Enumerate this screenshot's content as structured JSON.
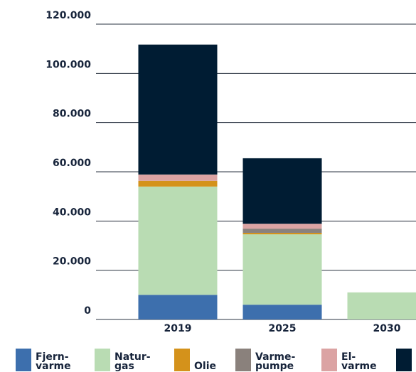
{
  "chart_data": {
    "type": "stacked-bar",
    "categories": [
      "2019",
      "2025",
      "2030"
    ],
    "series": [
      {
        "name": "Fjern-varme",
        "color": "#3d6fad",
        "values": [
          10000,
          6000,
          0
        ]
      },
      {
        "name": "Natur-gas",
        "color": "#b9dcb3",
        "values": [
          44000,
          28600,
          11000
        ]
      },
      {
        "name": "Olie",
        "color": "#d4921b",
        "values": [
          2300,
          600,
          0
        ]
      },
      {
        "name": "Varme-pumpe",
        "color": "#8a817c",
        "values": [
          0,
          1700,
          0
        ]
      },
      {
        "name": "El-varme",
        "color": "#dba3a3",
        "values": [
          2600,
          2000,
          0
        ]
      },
      {
        "name": null,
        "color": "#001c33",
        "values": [
          52800,
          26600,
          0
        ]
      }
    ],
    "ylim": [
      0,
      120000
    ],
    "yticks": [
      0,
      {
        "value": 20000,
        "label": "20.000"
      },
      {
        "value": 40000,
        "label": "40.000"
      },
      {
        "value": 60000,
        "label": "60.000"
      },
      {
        "value": 80000,
        "label": "80.000"
      },
      {
        "value": 100000,
        "label": "100.000"
      },
      {
        "value": 120000,
        "label": "120.000"
      }
    ],
    "grid": true
  }
}
